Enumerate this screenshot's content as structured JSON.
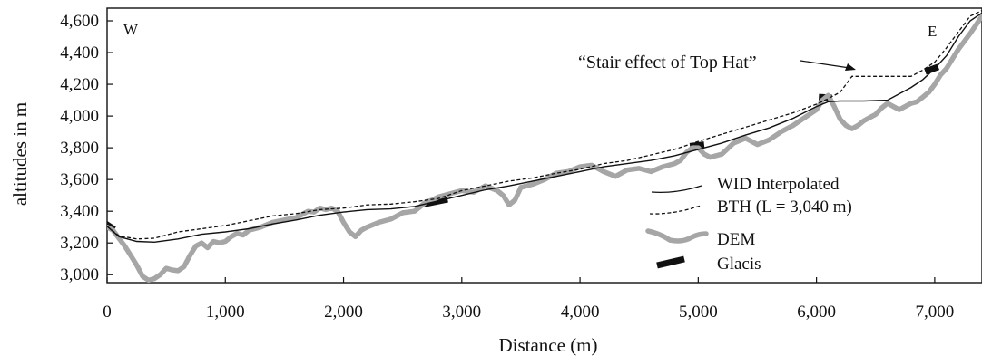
{
  "chart_data": {
    "type": "line",
    "title": "",
    "xlabel": "Distance (m)",
    "ylabel": "altitudes in m",
    "xlim": [
      0,
      7400
    ],
    "ylim": [
      2950,
      4680
    ],
    "x_ticks": [
      0,
      1000,
      2000,
      3000,
      4000,
      5000,
      6000,
      7000
    ],
    "x_tick_labels": [
      "0",
      "1,000",
      "2,000",
      "3,000",
      "4,000",
      "5,000",
      "6,000",
      "7,000"
    ],
    "y_ticks": [
      3000,
      3200,
      3400,
      3600,
      3800,
      4000,
      4200,
      4400,
      4600
    ],
    "y_tick_labels": [
      "3,000",
      "3,200",
      "3,400",
      "3,600",
      "3,800",
      "4,000",
      "4,200",
      "4,400",
      "4,600"
    ],
    "grid": false,
    "legend_position": "lower-right",
    "direction_labels": {
      "west": "W",
      "east": "E"
    },
    "annotation": {
      "text": "“Stair effect of Top Hat”",
      "points_to": [
        6250,
        4240
      ]
    },
    "series": [
      {
        "name": "WID Interpolated",
        "style": "solid-thin",
        "color": "#111111",
        "x": [
          0,
          100,
          250,
          400,
          600,
          800,
          1000,
          1200,
          1400,
          1600,
          1800,
          2000,
          2200,
          2400,
          2600,
          2800,
          3000,
          3200,
          3400,
          3600,
          3800,
          4000,
          4200,
          4400,
          4600,
          4800,
          5000,
          5200,
          5400,
          5600,
          5800,
          6000,
          6100,
          6200,
          6400,
          6600,
          6800,
          6900,
          7000,
          7100,
          7200,
          7300,
          7400
        ],
        "y": [
          3305,
          3240,
          3210,
          3205,
          3225,
          3255,
          3270,
          3290,
          3320,
          3345,
          3375,
          3395,
          3410,
          3415,
          3430,
          3465,
          3500,
          3535,
          3560,
          3590,
          3620,
          3650,
          3680,
          3700,
          3720,
          3750,
          3790,
          3830,
          3880,
          3925,
          3985,
          4060,
          4090,
          4095,
          4095,
          4100,
          4180,
          4230,
          4300,
          4380,
          4500,
          4600,
          4650
        ]
      },
      {
        "name": "BTH (L = 3,040 m)",
        "style": "dashed",
        "color": "#111111",
        "x": [
          0,
          100,
          250,
          400,
          600,
          800,
          1000,
          1200,
          1400,
          1600,
          1800,
          2000,
          2200,
          2400,
          2600,
          2800,
          3000,
          3200,
          3400,
          3600,
          3800,
          4000,
          4200,
          4400,
          4600,
          4800,
          5000,
          5200,
          5400,
          5600,
          5800,
          6000,
          6100,
          6200,
          6300,
          6400,
          6600,
          6800,
          6900,
          7000,
          7100,
          7200,
          7300,
          7400
        ],
        "y": [
          3305,
          3245,
          3225,
          3230,
          3270,
          3290,
          3310,
          3340,
          3370,
          3385,
          3410,
          3420,
          3440,
          3445,
          3460,
          3480,
          3530,
          3560,
          3590,
          3610,
          3640,
          3665,
          3700,
          3720,
          3755,
          3790,
          3840,
          3885,
          3930,
          3975,
          4020,
          4075,
          4110,
          4150,
          4250,
          4250,
          4250,
          4250,
          4290,
          4340,
          4430,
          4530,
          4630,
          4665
        ]
      },
      {
        "name": "DEM",
        "style": "thick-gray",
        "color": "#a6a6a6",
        "x": [
          0,
          50,
          100,
          150,
          200,
          250,
          300,
          350,
          400,
          450,
          500,
          550,
          600,
          650,
          700,
          750,
          800,
          850,
          900,
          950,
          1000,
          1050,
          1100,
          1150,
          1200,
          1300,
          1400,
          1500,
          1600,
          1700,
          1750,
          1800,
          1850,
          1900,
          1950,
          2000,
          2050,
          2100,
          2150,
          2200,
          2300,
          2400,
          2500,
          2600,
          2700,
          2750,
          2800,
          2900,
          3000,
          3100,
          3200,
          3300,
          3350,
          3400,
          3450,
          3500,
          3550,
          3600,
          3700,
          3800,
          3900,
          4000,
          4100,
          4200,
          4300,
          4400,
          4500,
          4600,
          4700,
          4800,
          4850,
          4900,
          4950,
          5000,
          5050,
          5100,
          5200,
          5300,
          5400,
          5450,
          5500,
          5600,
          5700,
          5800,
          5900,
          6000,
          6050,
          6100,
          6150,
          6200,
          6250,
          6300,
          6350,
          6400,
          6450,
          6500,
          6550,
          6600,
          6650,
          6700,
          6750,
          6800,
          6850,
          6900,
          6950,
          7000,
          7050,
          7100,
          7150,
          7200,
          7300,
          7400
        ],
        "y": [
          3300,
          3280,
          3230,
          3180,
          3120,
          3060,
          2990,
          2965,
          2975,
          3000,
          3040,
          3030,
          3025,
          3050,
          3120,
          3180,
          3200,
          3170,
          3210,
          3200,
          3210,
          3240,
          3260,
          3250,
          3280,
          3300,
          3330,
          3345,
          3360,
          3400,
          3395,
          3420,
          3410,
          3420,
          3400,
          3330,
          3270,
          3240,
          3280,
          3300,
          3330,
          3350,
          3390,
          3400,
          3460,
          3470,
          3490,
          3510,
          3530,
          3520,
          3560,
          3530,
          3500,
          3440,
          3470,
          3550,
          3560,
          3570,
          3600,
          3640,
          3650,
          3680,
          3690,
          3650,
          3620,
          3660,
          3670,
          3650,
          3680,
          3700,
          3720,
          3770,
          3800,
          3800,
          3760,
          3740,
          3760,
          3830,
          3860,
          3840,
          3820,
          3850,
          3900,
          3940,
          3990,
          4040,
          4100,
          4130,
          4060,
          3980,
          3940,
          3920,
          3940,
          3970,
          3990,
          4010,
          4050,
          4080,
          4060,
          4040,
          4060,
          4080,
          4090,
          4120,
          4150,
          4200,
          4260,
          4300,
          4360,
          4420,
          4520,
          4630
        ]
      }
    ],
    "glacis": [
      {
        "x": [
          -10,
          60
        ],
        "y": [
          3320,
          3285
        ]
      },
      {
        "x": [
          2680,
          2880
        ],
        "y": [
          3445,
          3475
        ]
      },
      {
        "x": [
          4930,
          5050
        ],
        "y": [
          3810,
          3820
        ]
      },
      {
        "x": [
          6020,
          6130
        ],
        "y": [
          4120,
          4115
        ]
      },
      {
        "x": [
          6920,
          7030
        ],
        "y": [
          4280,
          4310
        ]
      }
    ],
    "legend": {
      "items": [
        {
          "key": "wid",
          "label": "WID Interpolated"
        },
        {
          "key": "bth",
          "label": "BTH  (L = 3,040 m)"
        },
        {
          "key": "dem",
          "label": "DEM"
        },
        {
          "key": "glacis",
          "label": "Glacis"
        }
      ]
    }
  }
}
